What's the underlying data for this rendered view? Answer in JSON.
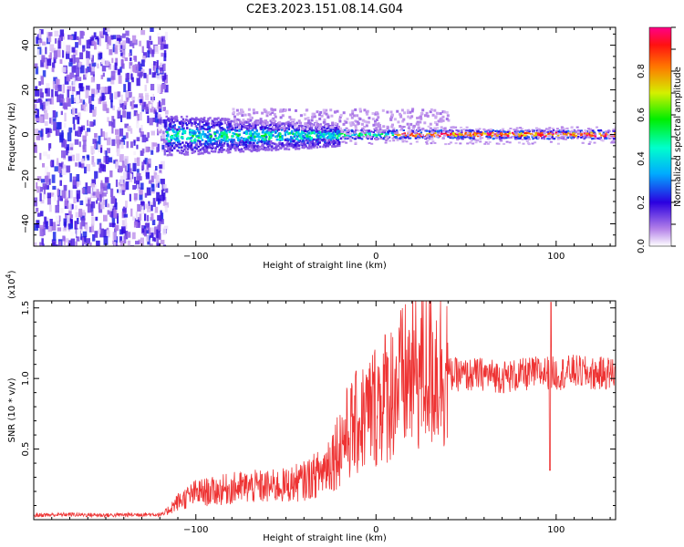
{
  "title": "C2E3.2023.151.08.14.G04",
  "chart_data": [
    {
      "type": "heatmap",
      "xlabel": "Height of straight line (km)",
      "ylabel": "Frequency (Hz)",
      "xlim": [
        -190,
        133
      ],
      "ylim": [
        -50,
        48
      ],
      "xticks": [
        -100,
        0,
        100
      ],
      "yticks": [
        40,
        20,
        0,
        -20,
        -40
      ],
      "regions": [
        {
          "x_range": [
            -190,
            -117
          ],
          "freq_range": [
            -50,
            48
          ],
          "amplitude": [
            0.0,
            0.25
          ],
          "pattern": "broadband noise"
        },
        {
          "x_range": [
            -117,
            -20
          ],
          "freq_range": [
            -8,
            8
          ],
          "amplitude": [
            0.1,
            0.45
          ],
          "pattern": "band around 0 Hz"
        },
        {
          "x_range": [
            -20,
            133
          ],
          "freq_range": [
            -2,
            2
          ],
          "amplitude": [
            0.6,
            1.0
          ],
          "pattern": "narrow line at 0 Hz"
        }
      ],
      "colorbar": {
        "label": "Normalized spectral amplitude",
        "range": [
          0.0,
          1.0
        ],
        "ticks": [
          "0.0",
          "0.2",
          "0.4",
          "0.6",
          "0.8"
        ]
      }
    },
    {
      "type": "line",
      "xlabel": "Height of straight line (km)",
      "ylabel": "SNR (10 * v/v)",
      "y_multiplier": "(x10",
      "y_multiplier_exp": "4",
      "xlim": [
        -190,
        133
      ],
      "ylim": [
        0,
        15500
      ],
      "xticks": [
        -100,
        0,
        100
      ],
      "yticks": [
        "0.5",
        "1.0",
        "1.5"
      ],
      "line_color": "#ee3333",
      "x": [
        -190,
        -170,
        -150,
        -130,
        -118,
        -110,
        -100,
        -90,
        -80,
        -70,
        -60,
        -50,
        -40,
        -30,
        -22,
        -18,
        -10,
        -5,
        0,
        10,
        20,
        30,
        40,
        50,
        60,
        70,
        80,
        90,
        97,
        100,
        110,
        120,
        133
      ],
      "y": [
        300,
        350,
        300,
        350,
        350,
        1200,
        1800,
        1900,
        2100,
        2200,
        2200,
        2300,
        2600,
        3200,
        4600,
        5500,
        6500,
        7000,
        7800,
        8800,
        9700,
        10200,
        10200,
        10100,
        10200,
        10000,
        10100,
        10300,
        10300,
        10200,
        10400,
        10200,
        10300
      ]
    }
  ]
}
